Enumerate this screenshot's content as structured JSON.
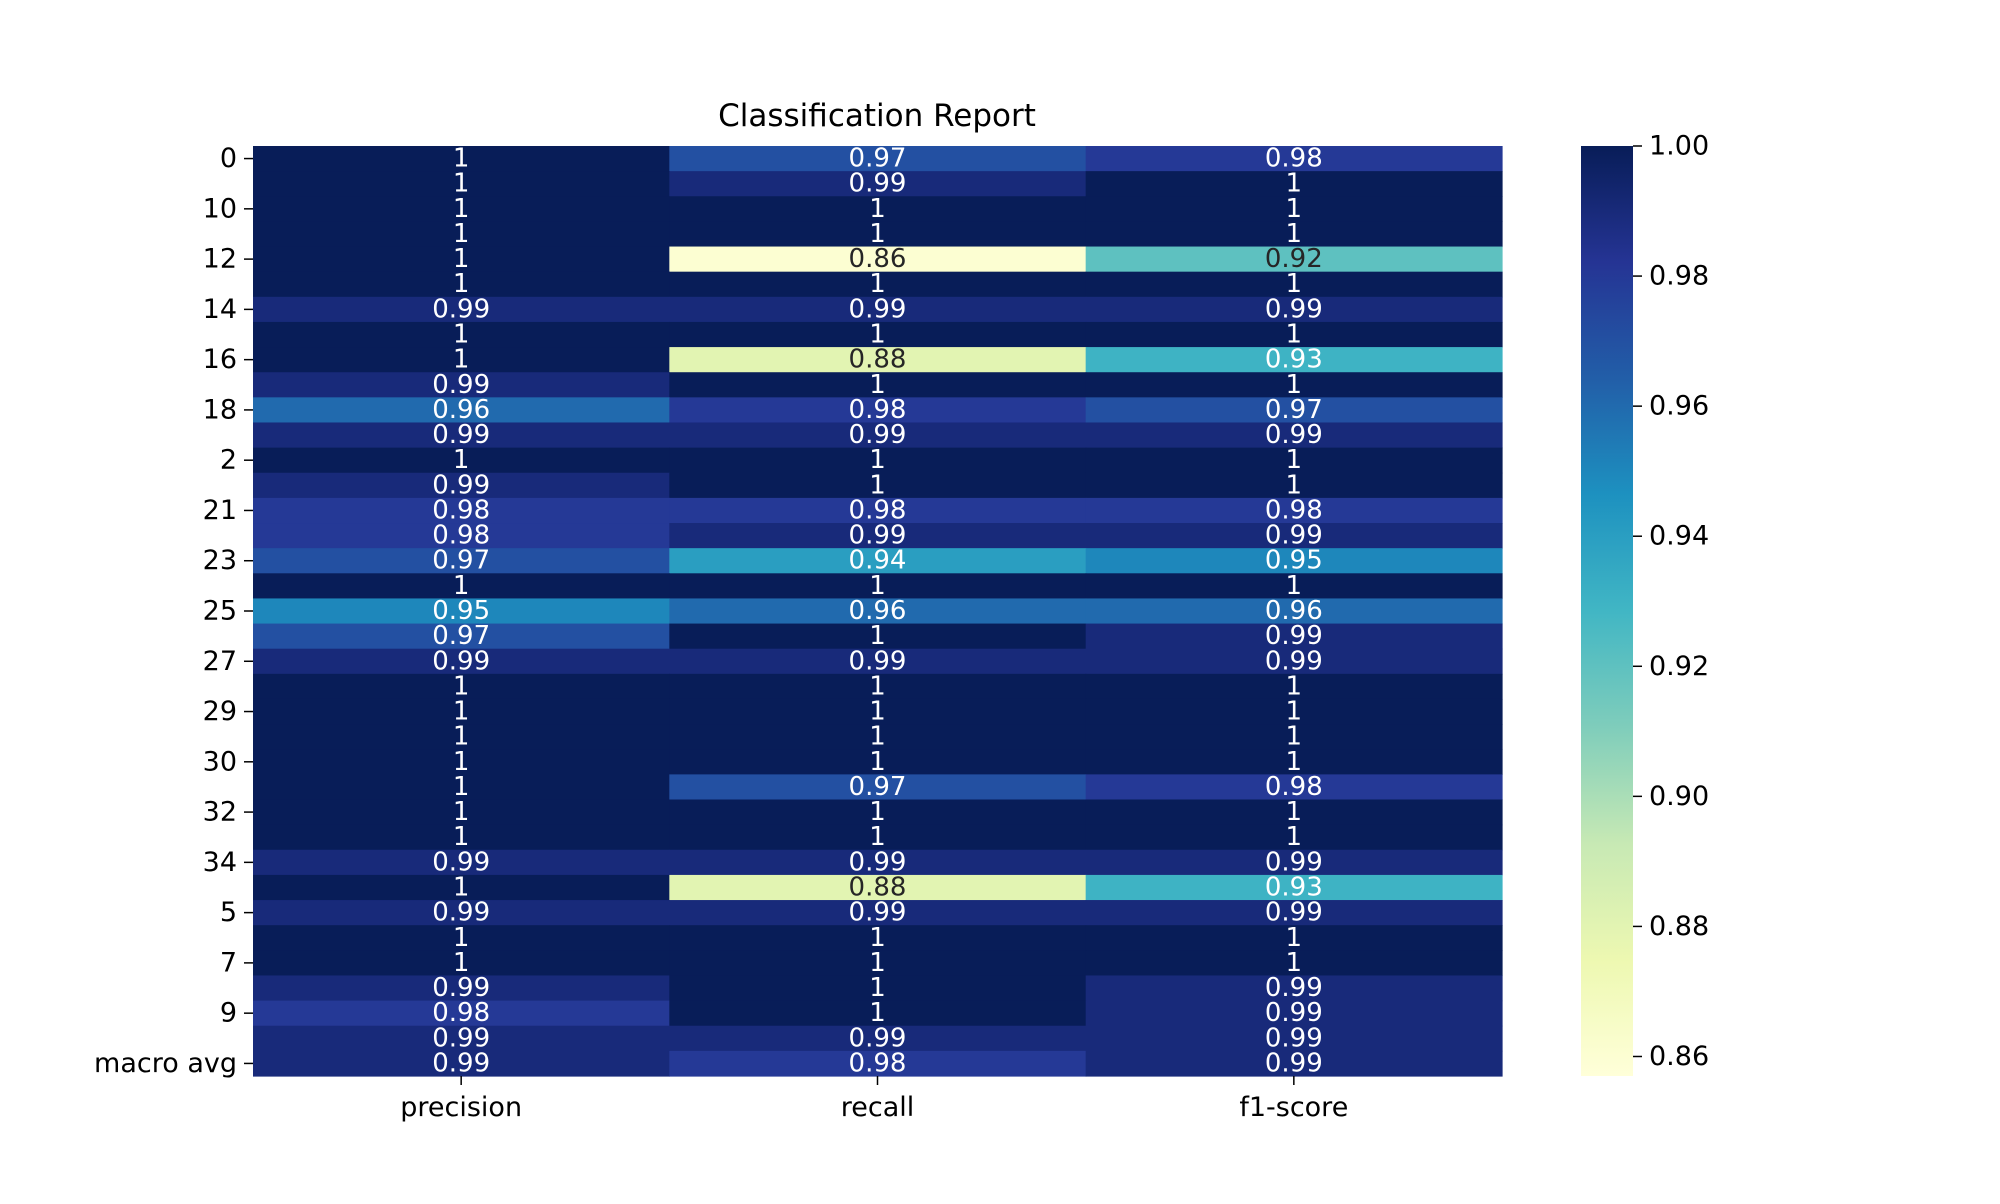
{
  "chart_data": {
    "type": "heatmap",
    "title": "Classification Report",
    "xlabel": "",
    "ylabel": "",
    "columns": [
      "precision",
      "recall",
      "f1-score"
    ],
    "row_tick_labels": [
      "0",
      "10",
      "12",
      "14",
      "16",
      "18",
      "2",
      "21",
      "23",
      "25",
      "27",
      "29",
      "30",
      "32",
      "34",
      "5",
      "7",
      "9",
      "macro avg"
    ],
    "values": [
      [
        1,
        0.97,
        0.98
      ],
      [
        1,
        0.99,
        1
      ],
      [
        1,
        1,
        1
      ],
      [
        1,
        1,
        1
      ],
      [
        1,
        0.86,
        0.92
      ],
      [
        1,
        1,
        1
      ],
      [
        0.99,
        0.99,
        0.99
      ],
      [
        1,
        1,
        1
      ],
      [
        1,
        0.88,
        0.93
      ],
      [
        0.99,
        1,
        1
      ],
      [
        0.96,
        0.98,
        0.97
      ],
      [
        0.99,
        0.99,
        0.99
      ],
      [
        1,
        1,
        1
      ],
      [
        0.99,
        1,
        1
      ],
      [
        0.98,
        0.98,
        0.98
      ],
      [
        0.98,
        0.99,
        0.99
      ],
      [
        0.97,
        0.94,
        0.95
      ],
      [
        1,
        1,
        1
      ],
      [
        0.95,
        0.96,
        0.96
      ],
      [
        0.97,
        1,
        0.99
      ],
      [
        0.99,
        0.99,
        0.99
      ],
      [
        1,
        1,
        1
      ],
      [
        1,
        1,
        1
      ],
      [
        1,
        1,
        1
      ],
      [
        1,
        1,
        1
      ],
      [
        1,
        0.97,
        0.98
      ],
      [
        1,
        1,
        1
      ],
      [
        1,
        1,
        1
      ],
      [
        0.99,
        0.99,
        0.99
      ],
      [
        1,
        0.88,
        0.93
      ],
      [
        0.99,
        0.99,
        0.99
      ],
      [
        1,
        1,
        1
      ],
      [
        1,
        1,
        1
      ],
      [
        0.99,
        1,
        0.99
      ],
      [
        0.98,
        1,
        0.99
      ],
      [
        0.99,
        0.99,
        0.99
      ],
      [
        0.99,
        0.98,
        0.99
      ]
    ],
    "colorbar": {
      "range": [
        0.857,
        1.0
      ],
      "ticks": [
        "1.00",
        "0.98",
        "0.96",
        "0.94",
        "0.92",
        "0.90",
        "0.88",
        "0.86"
      ],
      "colormap": "YlGnBu"
    },
    "text_colors": {
      "on_dark": "#ffffff",
      "on_light": "#262626"
    }
  }
}
